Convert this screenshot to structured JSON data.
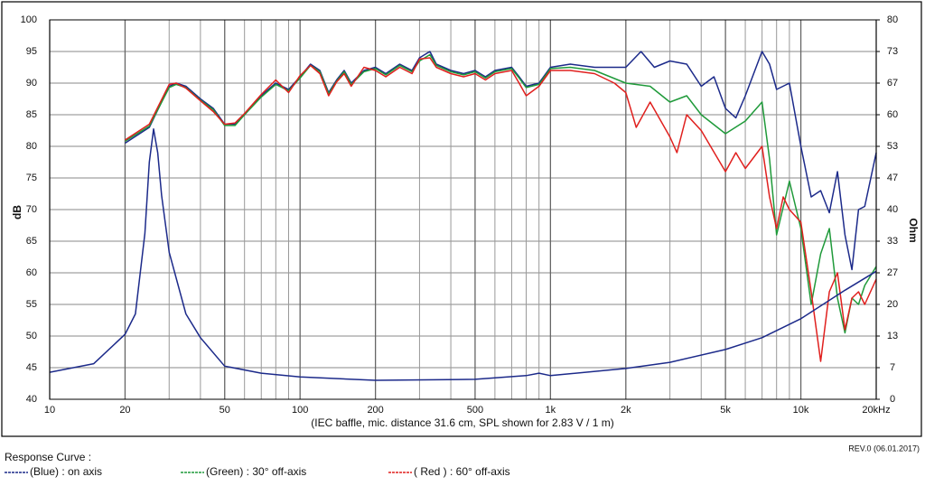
{
  "chart_data": {
    "type": "line",
    "xscale": "log",
    "xlabel": "(IEC baffle, mic. distance 31.6 cm, SPL shown for 2.83 V / 1 m)",
    "ylabel": "dB",
    "y2label": "Ohm",
    "xlim": [
      10,
      20000
    ],
    "ylim": [
      40,
      100
    ],
    "y2lim": [
      0,
      80
    ],
    "xticks": [
      10,
      20,
      50,
      100,
      200,
      500,
      {
        "value": 1000,
        "label": "1k"
      },
      {
        "value": 2000,
        "label": "2k"
      },
      {
        "value": 5000,
        "label": "5k"
      },
      {
        "value": 10000,
        "label": "10k"
      },
      {
        "value": 20000,
        "label": "20kHz"
      }
    ],
    "xgrid": [
      30,
      40,
      60,
      70,
      80,
      90,
      300,
      400,
      600,
      700,
      800,
      900,
      3000,
      4000,
      6000,
      7000,
      8000,
      9000
    ],
    "yticks": [
      40,
      45,
      50,
      55,
      60,
      65,
      70,
      75,
      80,
      85,
      90,
      95,
      100
    ],
    "y2ticks": [
      0,
      {
        "value": 6.667,
        "label": "7"
      },
      {
        "value": 13.333,
        "label": "13"
      },
      20,
      {
        "value": 26.667,
        "label": "27"
      },
      {
        "value": 33.333,
        "label": "33"
      },
      40,
      {
        "value": 46.667,
        "label": "47"
      },
      {
        "value": 53.333,
        "label": "53"
      },
      60,
      {
        "value": 66.667,
        "label": "67"
      },
      {
        "value": 73.333,
        "label": "73"
      },
      80
    ],
    "grid": true,
    "legend_title": "Response Curve :",
    "revision": "REV.0 (06.01.2017)",
    "series": [
      {
        "name": "(Blue)  : on axis",
        "color": "#1c2a8a",
        "x": [
          20,
          25,
          30,
          32,
          35,
          40,
          45,
          50,
          55,
          60,
          70,
          80,
          90,
          100,
          110,
          120,
          130,
          140,
          150,
          160,
          180,
          200,
          220,
          250,
          280,
          300,
          330,
          350,
          400,
          450,
          500,
          550,
          600,
          700,
          750,
          800,
          900,
          1000,
          1200,
          1500,
          2000,
          2300,
          2600,
          3000,
          3500,
          4000,
          4500,
          5000,
          5500,
          6000,
          7000,
          7500,
          8000,
          9000,
          10000,
          11000,
          12000,
          13000,
          14000,
          15000,
          16000,
          17000,
          18000,
          20000
        ],
        "values": [
          80.5,
          83,
          89.5,
          90,
          89.5,
          87.5,
          86,
          83.5,
          83.5,
          85,
          88,
          90,
          89,
          91,
          93,
          92,
          88.5,
          90.5,
          92,
          90,
          92,
          92.5,
          91.5,
          93,
          92,
          94,
          95,
          93,
          92,
          91.5,
          92,
          91,
          92,
          92.5,
          91,
          89.5,
          90,
          92.5,
          93,
          92.5,
          92.5,
          95,
          92.5,
          93.5,
          93,
          89.5,
          91,
          86,
          84.5,
          88,
          95,
          93,
          89,
          90,
          80,
          72,
          73,
          69.5,
          76,
          66,
          60.5,
          70,
          70.5,
          79
        ]
      },
      {
        "name": "(Green) : 30° off-axis",
        "color": "#1f9a3a",
        "x": [
          20,
          25,
          30,
          32,
          35,
          40,
          45,
          50,
          55,
          60,
          70,
          80,
          90,
          100,
          110,
          120,
          130,
          140,
          150,
          160,
          180,
          200,
          220,
          250,
          280,
          300,
          330,
          350,
          400,
          450,
          500,
          550,
          600,
          700,
          750,
          800,
          900,
          1000,
          1200,
          1500,
          2000,
          2500,
          3000,
          3500,
          4000,
          5000,
          6000,
          7000,
          7500,
          8000,
          9000,
          10000,
          11000,
          12000,
          13000,
          14000,
          15000,
          16000,
          17000,
          18000,
          20000
        ],
        "values": [
          80.8,
          83.2,
          89.3,
          89.8,
          89.3,
          87.3,
          85.8,
          83.3,
          83.3,
          85,
          87.8,
          89.8,
          88.8,
          90.8,
          92.8,
          91.8,
          88.3,
          90.3,
          91.8,
          89.8,
          91.8,
          92.3,
          91.3,
          92.8,
          91.8,
          93.5,
          94.5,
          92.8,
          91.8,
          91.3,
          91.8,
          90.8,
          91.8,
          92.3,
          90.8,
          89.3,
          89.8,
          92.3,
          92.5,
          92,
          90,
          89.5,
          87,
          88,
          85,
          82,
          84,
          87,
          78,
          66,
          74.5,
          67,
          55,
          63,
          67,
          56,
          50.5,
          56,
          55,
          58,
          61
        ]
      },
      {
        "name": "( Red ) : 60° off-axis",
        "color": "#e0201e",
        "x": [
          20,
          25,
          30,
          32,
          35,
          40,
          45,
          50,
          55,
          60,
          70,
          80,
          90,
          100,
          110,
          120,
          130,
          140,
          150,
          160,
          180,
          200,
          220,
          250,
          280,
          300,
          330,
          350,
          400,
          450,
          500,
          550,
          600,
          700,
          750,
          800,
          900,
          1000,
          1200,
          1500,
          1800,
          2000,
          2200,
          2500,
          3000,
          3200,
          3500,
          4000,
          5000,
          5500,
          6000,
          7000,
          7500,
          8000,
          8500,
          9000,
          10000,
          11000,
          12000,
          13000,
          14000,
          15000,
          16000,
          17000,
          18000,
          20000
        ],
        "values": [
          81,
          83.5,
          89.8,
          90,
          89.2,
          87.2,
          85.5,
          83.5,
          83.7,
          85.2,
          88.2,
          90.5,
          88.5,
          91.2,
          92.8,
          91.5,
          88,
          90.2,
          91.5,
          89.5,
          92.5,
          92,
          91,
          92.5,
          91.5,
          93.8,
          94,
          92.5,
          91.5,
          91,
          91.5,
          90.5,
          91.5,
          92,
          90,
          88,
          89.5,
          92,
          92,
          91.5,
          90,
          88.5,
          83,
          87,
          81.5,
          79,
          85,
          82.5,
          76,
          79,
          76.5,
          80,
          72,
          67,
          72,
          70,
          68,
          57,
          46,
          57,
          60,
          51,
          56,
          57,
          55,
          59
        ]
      },
      {
        "axis": "y2",
        "color": "#1c2a8a",
        "x": [
          10,
          15,
          20,
          22,
          24,
          25,
          26,
          27,
          28,
          30,
          35,
          40,
          50,
          70,
          100,
          200,
          500,
          800,
          900,
          1000,
          2000,
          3000,
          5000,
          7000,
          10000,
          15000,
          20000
        ],
        "values": [
          5.7,
          7.5,
          13.7,
          18,
          35,
          50,
          57,
          52,
          43,
          31,
          18,
          13,
          7,
          5.5,
          4.7,
          4,
          4.2,
          5,
          5.5,
          5,
          6.5,
          7.8,
          10.5,
          13,
          17,
          23,
          27
        ]
      }
    ]
  }
}
